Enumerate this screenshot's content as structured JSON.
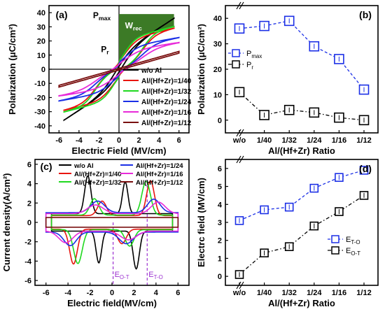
{
  "chart_data": [
    {
      "panel_label": "(a)",
      "type": "line",
      "xlabel": "Electric Field (MV/cm)",
      "ylabel": "Polarization (μC/cm²)",
      "xlim": [
        -7,
        7
      ],
      "ylim": [
        -45,
        45
      ],
      "xticks": [
        -6,
        -4,
        -2,
        0,
        2,
        4,
        6
      ],
      "yticks": [
        -40,
        -30,
        -20,
        -10,
        0,
        10,
        20,
        30,
        40
      ],
      "annotations": {
        "pmax": "P",
        "pmax_sub": "max",
        "wrec": "W",
        "wrec_sub": "rec",
        "pr": "P",
        "pr_sub": "r"
      },
      "legend_position": "bottom-right",
      "series": [
        {
          "name": "w/o Al",
          "color": "#000000",
          "pmax": 36,
          "pr": 11,
          "ec": 0.3,
          "w": 1.6,
          "emax": 5.5,
          "kind": "ring"
        },
        {
          "name": "Al/(Hf+Zr)=1/40",
          "color": "#e8150f",
          "pmax": 37,
          "pr": 2,
          "ec": 0.3,
          "w": 1.3,
          "emax": 5.5,
          "kind": "afe"
        },
        {
          "name": "Al/(Hf+Zr)=1/32",
          "color": "#1fd91f",
          "pmax": 39,
          "pr": 4,
          "ec": 0.3,
          "w": 1.1,
          "emax": 5.5,
          "kind": "afe"
        },
        {
          "name": "Al/(Hf+Zr)=1/24",
          "color": "#1b2fe6",
          "pmax": 29,
          "pr": 3,
          "ec": 0.4,
          "w": 1.5,
          "emax": 6,
          "kind": "afe"
        },
        {
          "name": "Al/(Hf+Zr)=1/16",
          "color": "#e82ad9",
          "pmax": 24,
          "pr": 1,
          "ec": 0.3,
          "w": 1.8,
          "emax": 6,
          "kind": "afe"
        },
        {
          "name": "Al/(Hf+Zr)=1/12",
          "color": "#7a1010",
          "pmax": 12,
          "pr": 0,
          "ec": 0.1,
          "w": 3,
          "emax": 6,
          "kind": "linear"
        }
      ]
    },
    {
      "panel_label": "(b)",
      "type": "line",
      "xlabel": "Al/(Hf+Zr) Ratio",
      "ylabel": "Polarization (μC/cm²)",
      "categories": [
        "w/o",
        "1/40",
        "1/32",
        "1/24",
        "1/16",
        "1/12"
      ],
      "ylim": [
        -5,
        45
      ],
      "yticks": [
        0,
        10,
        20,
        30,
        40
      ],
      "legend_position": "middle-left",
      "series": [
        {
          "name": "P",
          "name_sub": "max",
          "color": "#1b2fe6",
          "values": [
            36,
            37,
            39,
            29,
            24,
            12
          ]
        },
        {
          "name": "P",
          "name_sub": "r",
          "color": "#000000",
          "values": [
            11,
            2,
            4,
            3,
            1,
            0
          ]
        }
      ]
    },
    {
      "panel_label": "(c)",
      "type": "line",
      "xlabel": "Electric field(MV/cm)",
      "ylabel": "Current density(A/cm²)",
      "xlim": [
        -7,
        7
      ],
      "ylim": [
        -6.5,
        6.5
      ],
      "xticks": [
        -6,
        -4,
        -2,
        0,
        2,
        4,
        6
      ],
      "yticks": [
        -6,
        -4,
        -2,
        0,
        2,
        4,
        6
      ],
      "annotations": {
        "e1": "E",
        "e1_sub": "O-T",
        "e1_x": 0.1,
        "e2": "E",
        "e2_sub": "T-O",
        "e2_x": 3.2
      },
      "legend_position": "top",
      "series": [
        {
          "name": "w/o Al",
          "color": "#000000",
          "emax": 5.5,
          "amp": 0.9,
          "peaks": [
            [
              1.2,
              3.3,
              0.35
            ],
            [
              2.2,
              3.9,
              0.4
            ]
          ]
        },
        {
          "name": "Al/(Hf+Zr)=1/40",
          "color": "#e8150f",
          "emax": 5.5,
          "amp": 0.7,
          "peaks": [
            [
              3.5,
              3.6,
              0.5
            ],
            [
              0.9,
              1.5,
              0.55
            ]
          ]
        },
        {
          "name": "Al/(Hf+Zr)=1/32",
          "color": "#1fd91f",
          "emax": 5.5,
          "amp": 0.75,
          "peaks": [
            [
              3.1,
              3.5,
              0.55
            ],
            [
              1.6,
              1.7,
              0.55
            ]
          ]
        },
        {
          "name": "Al/(Hf+Zr)=1/24",
          "color": "#1b2fe6",
          "emax": 6,
          "amp": 1.0,
          "peaks": [
            [
              3.8,
              1.4,
              0.8
            ],
            [
              1.3,
              1.2,
              0.9
            ]
          ]
        },
        {
          "name": "Al/(Hf+Zr)=1/16",
          "color": "#e82ad9",
          "emax": 6,
          "amp": 0.9,
          "peaks": [
            [
              4.2,
              1.2,
              0.9
            ],
            [
              1.5,
              0.9,
              1.0
            ]
          ]
        },
        {
          "name": "Al/(Hf+Zr)=1/12",
          "color": "#7a1010",
          "emax": 6,
          "amp": 0.5,
          "peaks": []
        }
      ]
    },
    {
      "panel_label": "(d)",
      "type": "line",
      "xlabel": "Al/(Hf+Zr) Ratio",
      "ylabel": "Electrc field (MV/cm)",
      "categories": [
        "w/o",
        "1/40",
        "1/32",
        "1/24",
        "1/16",
        "1/12"
      ],
      "ylim": [
        -0.5,
        6.5
      ],
      "yticks": [
        0,
        1,
        2,
        3,
        4,
        5,
        6
      ],
      "legend_position": "bottom-right",
      "series": [
        {
          "name": "E",
          "name_sub": "T-O",
          "color": "#1b2fe6",
          "values": [
            3.1,
            3.7,
            3.85,
            4.9,
            5.5,
            5.9
          ]
        },
        {
          "name": "E",
          "name_sub": "O-T",
          "color": "#000000",
          "values": [
            0.1,
            1.3,
            1.65,
            2.8,
            3.6,
            4.5
          ]
        }
      ]
    }
  ]
}
